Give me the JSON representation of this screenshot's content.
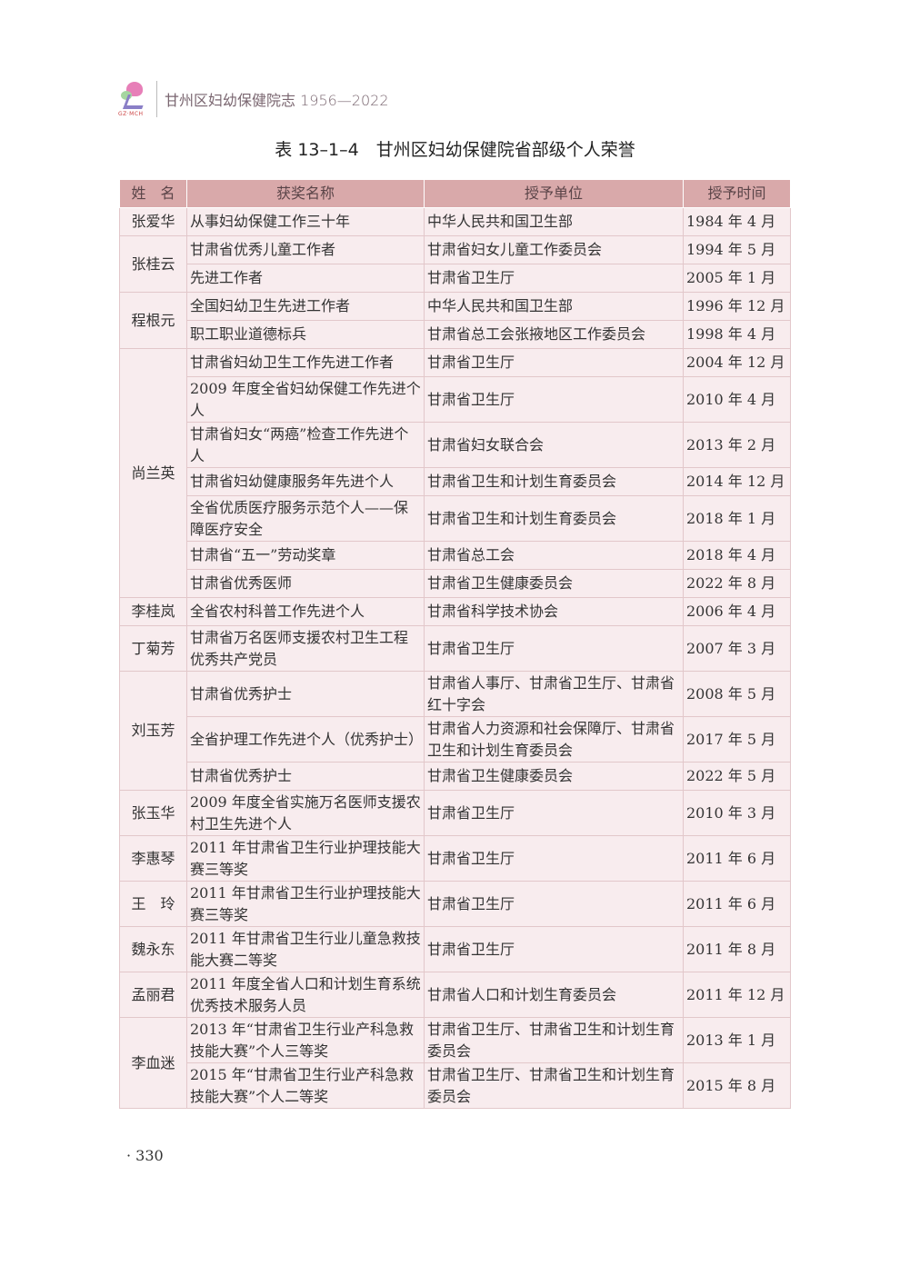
{
  "header": {
    "logo_text": "GZ·MCH",
    "title": "甘州区妇幼保健院志 1956—2022"
  },
  "caption": "表 13–1–4　甘州区妇幼保健院省部级个人荣誉",
  "table": {
    "columns": [
      "姓　名",
      "获奖名称",
      "授予单位",
      "授予时间"
    ],
    "persons": [
      {
        "name": "张爱华",
        "awards": [
          {
            "award": "从事妇幼保健工作三十年",
            "unit": "中华人民共和国卫生部",
            "date": "1984 年 4 月",
            "lines": 1
          }
        ]
      },
      {
        "name": "张桂云",
        "awards": [
          {
            "award": "甘肃省优秀儿童工作者",
            "unit": "甘肃省妇女儿童工作委员会",
            "date": "1994 年 5 月",
            "lines": 1
          },
          {
            "award": "先进工作者",
            "unit": "甘肃省卫生厅",
            "date": "2005 年 1 月",
            "lines": 1
          }
        ]
      },
      {
        "name": "程根元",
        "awards": [
          {
            "award": "全国妇幼卫生先进工作者",
            "unit": "中华人民共和国卫生部",
            "date": "1996 年 12 月",
            "lines": 1
          },
          {
            "award": "职工职业道德标兵",
            "unit": "甘肃省总工会张掖地区工作委员会",
            "date": "1998 年 4 月",
            "lines": 1
          }
        ]
      },
      {
        "name": "尚兰英",
        "awards": [
          {
            "award": "甘肃省妇幼卫生工作先进工作者",
            "unit": "甘肃省卫生厅",
            "date": "2004 年 12 月",
            "lines": 1
          },
          {
            "award": "2009 年度全省妇幼保健工作先进个人",
            "unit": "甘肃省卫生厅",
            "date": "2010 年 4 月",
            "lines": 2
          },
          {
            "award": "甘肃省妇女“两癌”检查工作先进个人",
            "unit": "甘肃省妇女联合会",
            "date": "2013 年 2 月",
            "lines": 2
          },
          {
            "award": "甘肃省妇幼健康服务年先进个人",
            "unit": "甘肃省卫生和计划生育委员会",
            "date": "2014 年 12 月",
            "lines": 1
          },
          {
            "award": "全省优质医疗服务示范个人——保障医疗安全",
            "unit": "甘肃省卫生和计划生育委员会",
            "date": "2018 年 1 月",
            "lines": 2
          },
          {
            "award": "甘肃省“五一”劳动奖章",
            "unit": "甘肃省总工会",
            "date": "2018 年 4 月",
            "lines": 1
          },
          {
            "award": "甘肃省优秀医师",
            "unit": "甘肃省卫生健康委员会",
            "date": "2022 年 8 月",
            "lines": 1
          }
        ]
      },
      {
        "name": "李桂岚",
        "awards": [
          {
            "award": "全省农村科普工作先进个人",
            "unit": "甘肃省科学技术协会",
            "date": "2006 年 4 月",
            "lines": 1
          }
        ]
      },
      {
        "name": "丁菊芳",
        "awards": [
          {
            "award": "甘肃省万名医师支援农村卫生工程优秀共产党员",
            "unit": "甘肃省卫生厅",
            "date": "2007 年 3 月",
            "lines": 2
          }
        ]
      },
      {
        "name": "刘玉芳",
        "awards": [
          {
            "award": "甘肃省优秀护士",
            "unit": "甘肃省人事厅、甘肃省卫生厅、甘肃省红十字会",
            "date": "2008 年 5 月",
            "lines": 2
          },
          {
            "award": "全省护理工作先进个人（优秀护士）",
            "unit": "甘肃省人力资源和社会保障厅、甘肃省卫生和计划生育委员会",
            "date": "2017 年 5 月",
            "lines": 2
          },
          {
            "award": "甘肃省优秀护士",
            "unit": "甘肃省卫生健康委员会",
            "date": "2022 年 5 月",
            "lines": 1
          }
        ]
      },
      {
        "name": "张玉华",
        "awards": [
          {
            "award": "2009 年度全省实施万名医师支援农村卫生先进个人",
            "unit": "甘肃省卫生厅",
            "date": "2010 年 3 月",
            "lines": 2
          }
        ]
      },
      {
        "name": "李惠琴",
        "awards": [
          {
            "award": "2011 年甘肃省卫生行业护理技能大赛三等奖",
            "unit": "甘肃省卫生厅",
            "date": "2011 年 6 月",
            "lines": 2
          }
        ]
      },
      {
        "name": "王　玲",
        "awards": [
          {
            "award": "2011 年甘肃省卫生行业护理技能大赛三等奖",
            "unit": "甘肃省卫生厅",
            "date": "2011 年 6 月",
            "lines": 2
          }
        ]
      },
      {
        "name": "魏永东",
        "awards": [
          {
            "award": "2011 年甘肃省卫生行业儿童急救技能大赛二等奖",
            "unit": "甘肃省卫生厅",
            "date": "2011 年 8 月",
            "lines": 2
          }
        ]
      },
      {
        "name": "孟丽君",
        "awards": [
          {
            "award": "2011 年度全省人口和计划生育系统优秀技术服务人员",
            "unit": "甘肃省人口和计划生育委员会",
            "date": "2011 年 12 月",
            "lines": 2
          }
        ]
      },
      {
        "name": "李血迷",
        "awards": [
          {
            "award": "2013 年“甘肃省卫生行业产科急救技能大赛”个人三等奖",
            "unit": "甘肃省卫生厅、甘肃省卫生和计划生育委员会",
            "date": "2013 年 1 月",
            "lines": 2
          },
          {
            "award": "2015 年“甘肃省卫生行业产科急救技能大赛”个人二等奖",
            "unit": "甘肃省卫生厅、甘肃省卫生和计划生育委员会",
            "date": "2015 年 8 月",
            "lines": 2
          }
        ]
      }
    ]
  },
  "page_number": "· 330"
}
